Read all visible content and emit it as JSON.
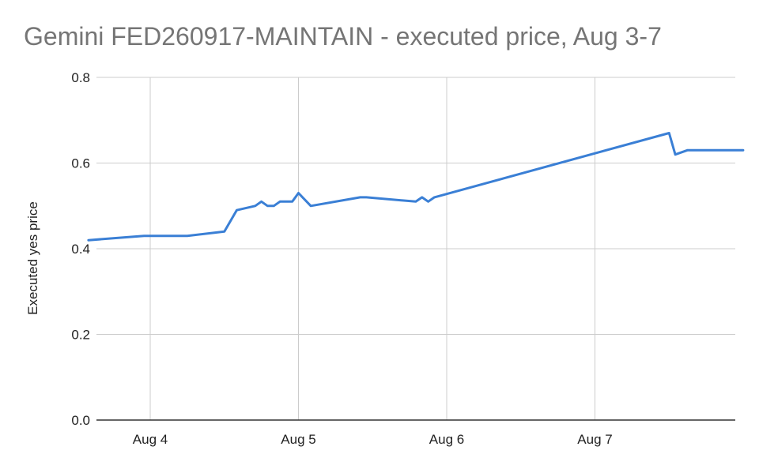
{
  "chart_data": {
    "type": "line",
    "title": "Gemini FED260917-MAINTAIN - executed price, Aug 3-7",
    "xlabel": "",
    "ylabel": "Executed yes price",
    "x_ticks": [
      "Aug 4",
      "Aug 5",
      "Aug 6",
      "Aug 7"
    ],
    "y_ticks": [
      "0.0",
      "0.2",
      "0.4",
      "0.6",
      "0.8"
    ],
    "ylim": [
      0,
      0.8
    ],
    "grid": true,
    "colors": {
      "line": "#3a7fd5",
      "grid": "#cccccc",
      "axis": "#333333"
    },
    "series": [
      {
        "points": [
          [
            "Aug 3 14:00",
            0.42
          ],
          [
            "Aug 3 23:00",
            0.43
          ],
          [
            "Aug 4 06:00",
            0.43
          ],
          [
            "Aug 4 12:00",
            0.44
          ],
          [
            "Aug 4 14:00",
            0.49
          ],
          [
            "Aug 4 17:00",
            0.5
          ],
          [
            "Aug 4 18:00",
            0.51
          ],
          [
            "Aug 4 19:00",
            0.5
          ],
          [
            "Aug 4 20:00",
            0.5
          ],
          [
            "Aug 4 21:00",
            0.51
          ],
          [
            "Aug 4 23:00",
            0.51
          ],
          [
            "Aug 5 00:00",
            0.53
          ],
          [
            "Aug 5 02:00",
            0.5
          ],
          [
            "Aug 5 10:00",
            0.52
          ],
          [
            "Aug 5 11:00",
            0.52
          ],
          [
            "Aug 5 19:00",
            0.51
          ],
          [
            "Aug 5 20:00",
            0.52
          ],
          [
            "Aug 5 21:00",
            0.51
          ],
          [
            "Aug 5 22:00",
            0.52
          ],
          [
            "Aug 7 12:00",
            0.67
          ],
          [
            "Aug 7 13:00",
            0.62
          ],
          [
            "Aug 7 15:00",
            0.63
          ],
          [
            "Aug 7 23:59",
            0.63
          ]
        ]
      }
    ]
  }
}
